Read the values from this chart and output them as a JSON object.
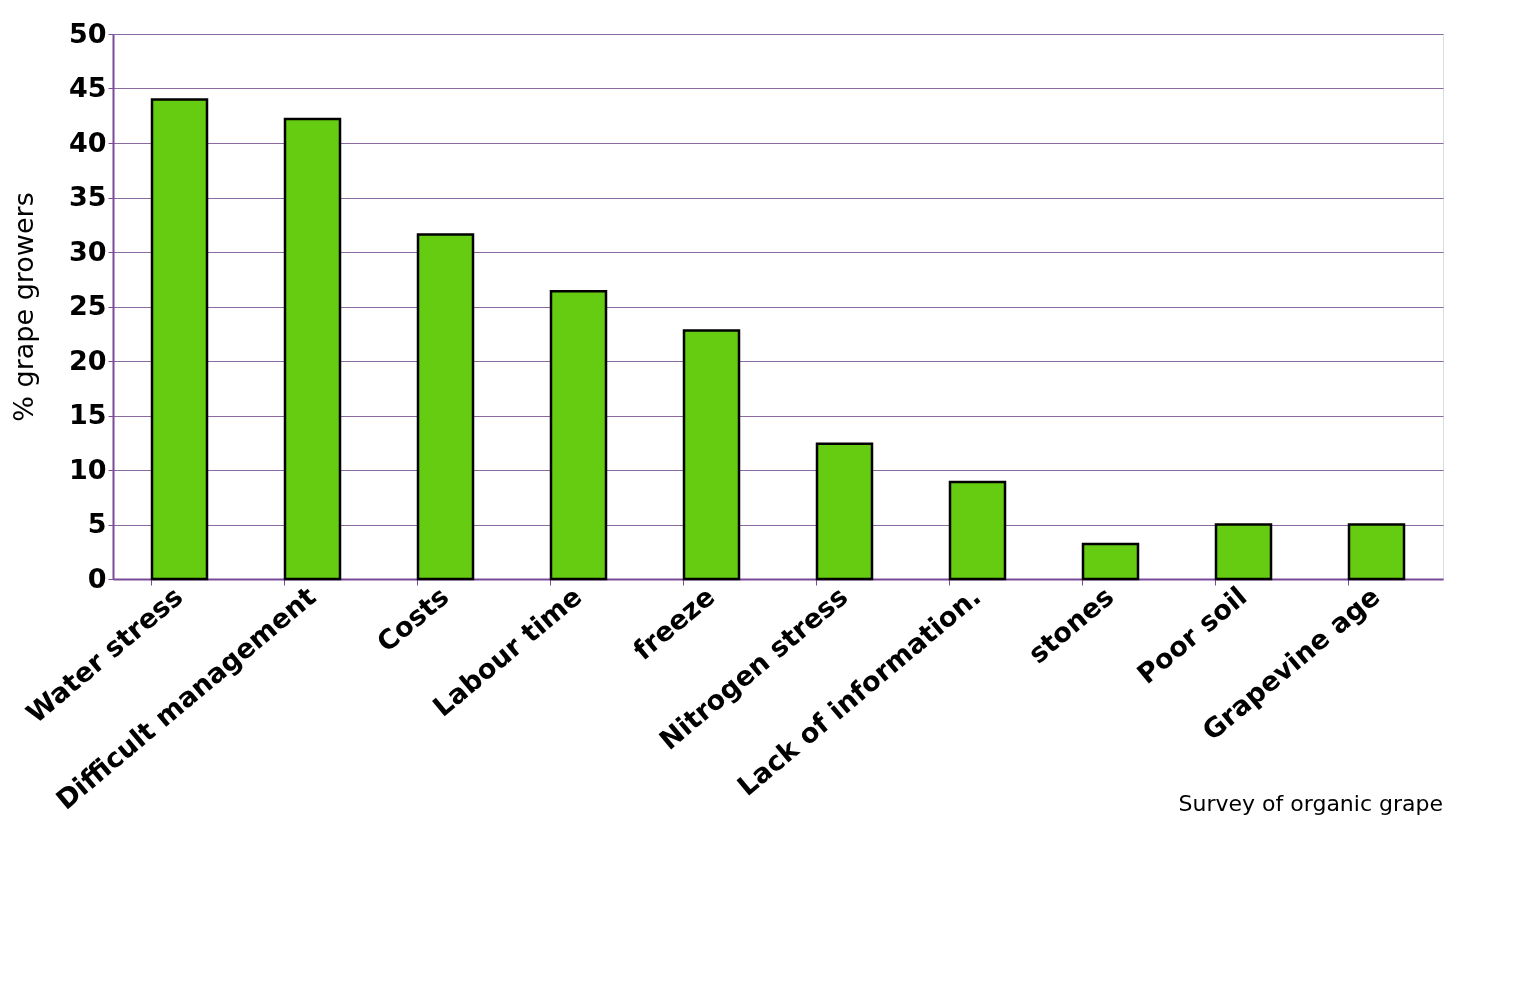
{
  "chart_data": {
    "type": "bar",
    "ylabel": "% grape growers",
    "categories": [
      "Water stress",
      "Difficult management",
      "Costs",
      "Labour time",
      "freeze",
      "Nitrogen stress",
      "Lack of information.",
      "stones",
      "Poor soil",
      "Grapevine age"
    ],
    "series": [
      {
        "color": "#66cc11",
        "values": [
          44.0,
          42.2,
          31.6,
          26.4,
          22.8,
          12.4,
          8.9,
          3.2,
          5.0,
          5.0
        ]
      }
    ],
    "ylim": [
      0,
      50
    ],
    "yticks": [
      0,
      5,
      10,
      15,
      20,
      25,
      30,
      35,
      40,
      45,
      50
    ],
    "grid": "y",
    "annotations": [
      "Survey of organic grape"
    ]
  }
}
